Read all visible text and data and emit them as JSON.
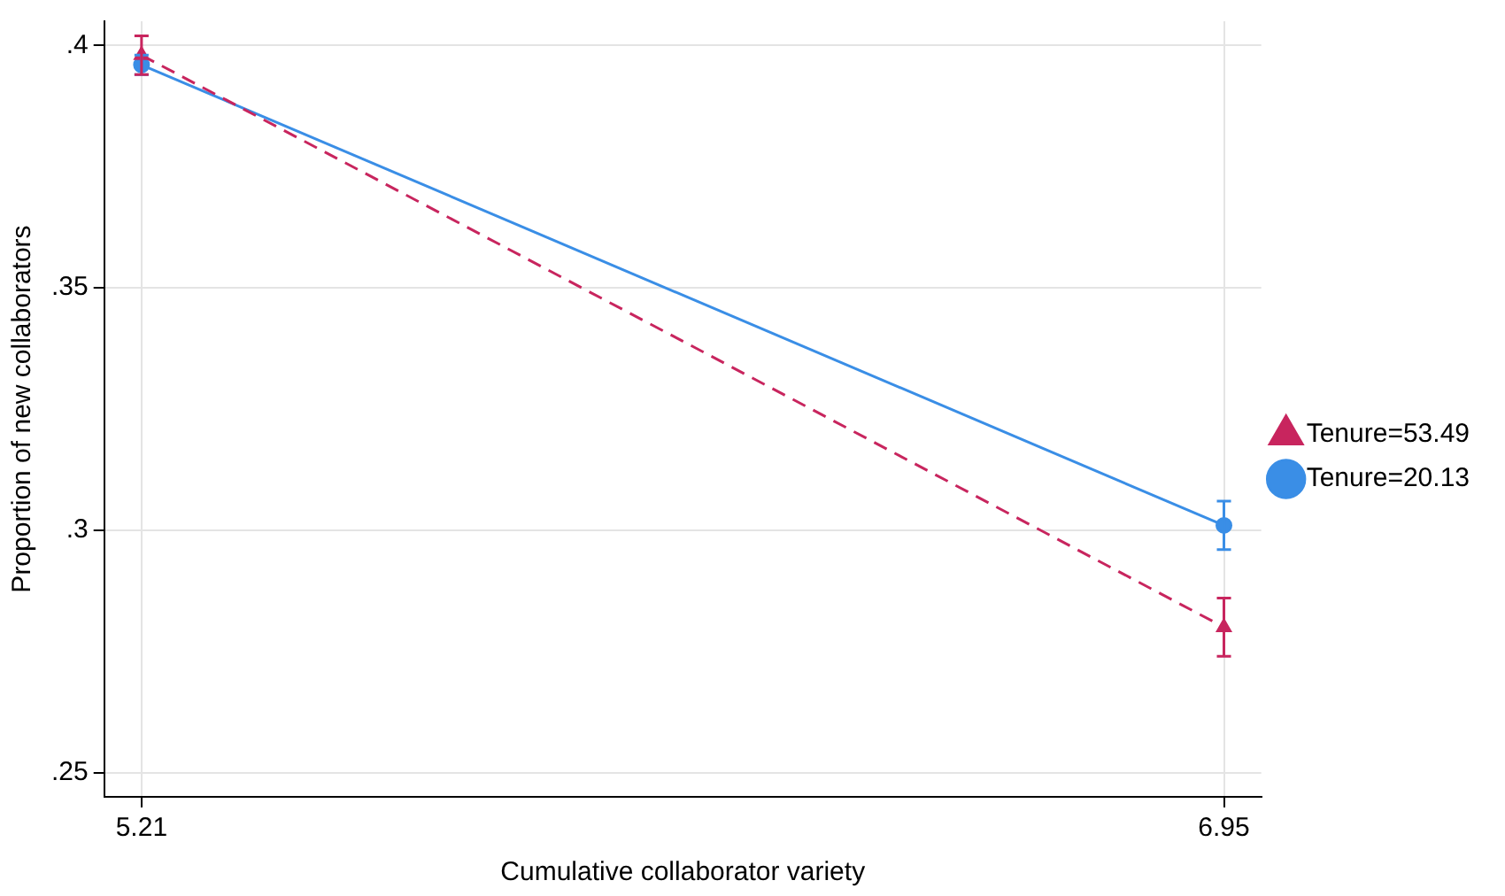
{
  "chart_data": {
    "type": "line",
    "xlabel": "Cumulative collaborator variety",
    "ylabel": "Proportion of new collaborators",
    "x": [
      5.21,
      6.95
    ],
    "xlim": [
      5.15,
      7.01
    ],
    "xticks": [
      5.21,
      6.95
    ],
    "ylim": [
      0.245,
      0.405
    ],
    "yticks": [
      {
        "value": 0.25,
        "label": ".25"
      },
      {
        "value": 0.3,
        "label": ".3"
      },
      {
        "value": 0.35,
        "label": ".35"
      },
      {
        "value": 0.4,
        "label": ".4"
      }
    ],
    "grid": true,
    "legend": "right",
    "series": [
      {
        "name": "Tenure=20.13",
        "color": "#3a8ee6",
        "values": [
          0.396,
          0.301
        ],
        "errors": [
          0.002,
          0.005
        ],
        "marker": "circle",
        "line_style": "solid"
      },
      {
        "name": "Tenure=53.49",
        "color": "#c8255e",
        "values": [
          0.398,
          0.28
        ],
        "errors": [
          0.004,
          0.006
        ],
        "marker": "triangle",
        "line_style": "dashed"
      }
    ]
  }
}
